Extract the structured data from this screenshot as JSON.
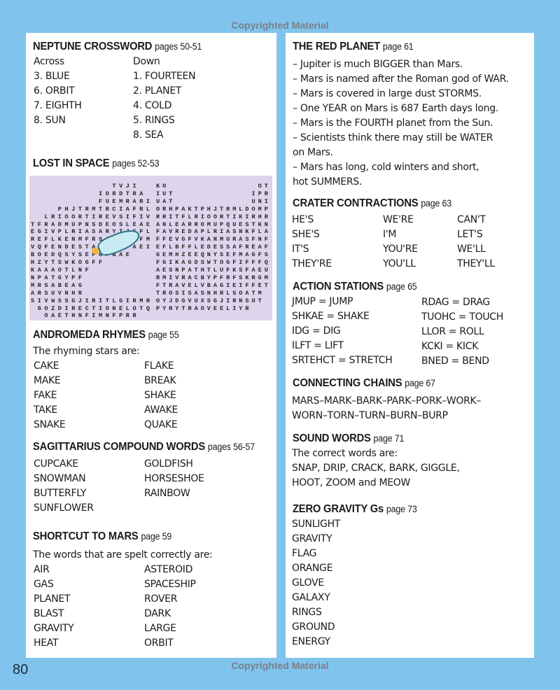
{
  "copyright": "Copyrighted Material",
  "page_number": "80",
  "neptune": {
    "title": "NEPTUNE CROSSWORD",
    "pages": "pages 50-51",
    "across_label": "Across",
    "down_label": "Down",
    "across": [
      "3. BLUE",
      "6. ORBIT",
      "7. EIGHTH",
      "8. SUN"
    ],
    "down": [
      "1. FOURTEEN",
      "2. PLANET",
      "4. COLD",
      "5. RINGS",
      "8. SEA"
    ]
  },
  "lost": {
    "title": "LOST IN SPACE",
    "pages": "pages 52-53",
    "grid_left": [
      "            TVJI  ",
      "          IORDTRA ",
      "          FUEMRARI",
      "    PHJTRMTRCIAFRL",
      "  LRIOORTIREVSIFIV",
      "TFRADMUPNSDEOSLEAE",
      "EGIVPLRIASARYIJGFL",
      "REFLKENMFRSAGNLFFM",
      "VQFENDESTAEMHZFAEI",
      "BOEDQSYSEFGFBAE   ",
      "HZYTSWKOGFF       ",
      "KAAAOTLNF         ",
      "NPATGYPF          ",
      "MRSABEAG          ",
      "ARSUVNHR          ",
      "SIVWSSGJIRITLGIRMR",
      " GOZDIRECTIONELOTQ",
      "  OAETHNFIMNFPRR  "
    ],
    "grid_right": [
      "KO              OT",
      "IUT            IPR",
      "UAT            UNI",
      "ORHPAKTPHJTRMLDOMP",
      "RRITFLRIOORTIKIRHR",
      "ANLEARROMUPQUESTKN",
      "FAVREDAPLRIASNKFLA",
      "FFEVGFVKANMURASFNF",
      "EFLBFFLEDESSAFREAF",
      "GEMHZEEQNYSEFMAGFS",
      "FGIKAGDSWTOGFIFFFQ",
      "AESNPATHTLUFKSFAEU",
      "RMIVRACBYPFRFSKRGM",
      "FTRAVELVBAGIEIFFET",
      "TROSISASNHRLSOATM ",
      "OYJDGVUXSGJIRNSOT ",
      "PYRYTRAOVEELIYR   "
    ]
  },
  "andromeda": {
    "title": "ANDROMEDA RHYMES",
    "pages": "page 55",
    "intro": "The rhyming stars are:",
    "col1": [
      "CAKE",
      "MAKE",
      "FAKE",
      "TAKE",
      "SNAKE"
    ],
    "col2": [
      "FLAKE",
      "BREAK",
      "SHAKE",
      "AWAKE",
      "QUAKE"
    ]
  },
  "sagittarius": {
    "title": "SAGITTARIUS COMPOUND WORDS",
    "pages": "pages 56-57",
    "col1": [
      "CUPCAKE",
      "SNOWMAN",
      "BUTTERFLY",
      "SUNFLOWER"
    ],
    "col2": [
      "GOLDFISH",
      "HORSESHOE",
      "RAINBOW"
    ]
  },
  "shortcut": {
    "title": "SHORTCUT TO MARS",
    "pages": "page 59",
    "intro": "The words that are spelt correctly are:",
    "col1": [
      "AIR",
      "GAS",
      "PLANET",
      "BLAST",
      "GRAVITY",
      "HEAT"
    ],
    "col2": [
      "ASTEROID",
      "SPACESHIP",
      "ROVER",
      "DARK",
      "LARGE",
      "ORBIT"
    ]
  },
  "red": {
    "title": "THE RED PLANET",
    "pages": "page 61",
    "lines": [
      "– Jupiter is much BIGGER than Mars.",
      "– Mars is named after the Roman god of WAR.",
      "– Mars is covered in large dust STORMS.",
      "– One YEAR on Mars is 687 Earth days long.",
      "– Mars is the FOURTH planet from the Sun.",
      "– Scientists think there may still be WATER",
      "on Mars.",
      "– Mars has long, cold winters and short,",
      "hot SUMMERS."
    ]
  },
  "crater": {
    "title": "CRATER CONTRACTIONS",
    "pages": "page 63",
    "col1": [
      "HE'S",
      "SHE'S",
      "IT'S",
      "THEY'RE"
    ],
    "col2": [
      "WE'RE",
      "I'M",
      "YOU'RE",
      "YOU'LL"
    ],
    "col3": [
      "CAN'T",
      "LET'S",
      "WE'LL",
      "THEY'LL"
    ]
  },
  "action": {
    "title": "ACTION STATIONS",
    "pages": "page 65",
    "col1": [
      "JMUP = JUMP",
      "SHKAE = SHAKE",
      "IDG = DIG",
      "ILFT = LIFT",
      "SRTEHCT = STRETCH"
    ],
    "col2": [
      "RDAG = DRAG",
      "TUOHC = TOUCH",
      "LLOR = ROLL",
      "KCKI = KICK",
      "BNED = BEND"
    ]
  },
  "chains": {
    "title": "CONNECTING CHAINS",
    "pages": "page 67",
    "lines": [
      "MARS–MARK–BARK–PARK–PORK–WORK–",
      "WORN–TORN–TURN–BURN–BURP"
    ]
  },
  "sound": {
    "title": "SOUND WORDS",
    "pages": "page 71",
    "lines": [
      "The correct words are:",
      "SNAP, DRIP, CRACK, BARK, GIGGLE,",
      "HOOT, ZOOM and MEOW"
    ]
  },
  "zero": {
    "title": "ZERO GRAVITY Gs",
    "pages": "page 73",
    "lines": [
      "SUNLIGHT",
      "GRAVITY",
      "FLAG",
      "ORANGE",
      "GLOVE",
      "GALAXY",
      "RINGS",
      "GROUND",
      "ENERGY"
    ]
  }
}
